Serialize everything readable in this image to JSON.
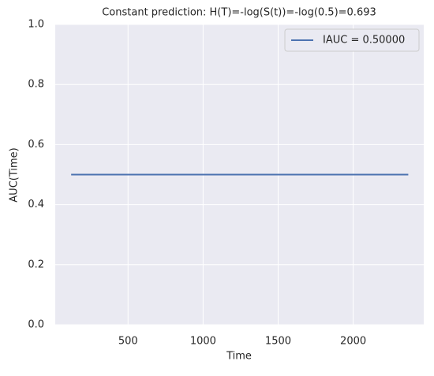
{
  "chart_data": {
    "type": "line",
    "title": "Constant prediction: H(T)=-log(S(t))=-log(0.5)=0.693",
    "x_label": "Time",
    "y_label": "AUC(Time)",
    "series": [
      {
        "name": "IAUC = 0.50000",
        "color": "#4c72b0",
        "x": [
          121,
          2367
        ],
        "values": [
          0.5,
          0.5
        ]
      }
    ],
    "xlim": [
      15,
      2470
    ],
    "xticks": [
      500,
      1000,
      1500,
      2000
    ],
    "ylim": [
      0,
      1
    ],
    "yticks": [
      {
        "value": 0,
        "label": "0.0"
      },
      {
        "value": 0.2,
        "label": "0.2"
      },
      {
        "value": 0.4,
        "label": "0.4"
      },
      {
        "value": 0.6,
        "label": "0.6"
      },
      {
        "value": 0.8,
        "label": "0.8"
      },
      {
        "value": 1,
        "label": "1.0"
      }
    ],
    "grid": true,
    "legend": "upper right"
  }
}
